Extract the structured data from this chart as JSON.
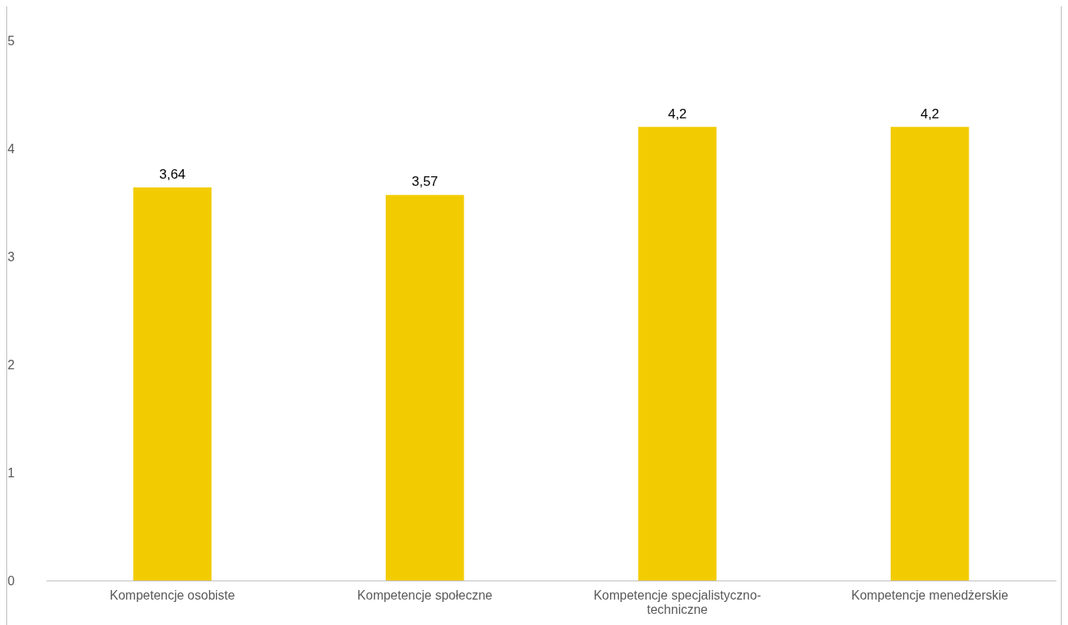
{
  "chart_data": {
    "type": "bar",
    "categories": [
      "Kompetencje osobiste",
      "Kompetencje społeczne",
      "Kompetencje specjalistyczno-techniczne",
      "Kompetencje menedżerskie"
    ],
    "values": [
      3.64,
      3.57,
      4.2,
      4.2
    ],
    "value_labels": [
      "3,64",
      "3,57",
      "4,2",
      "4,2"
    ],
    "color": "#f2cc00",
    "ylim": [
      0,
      5
    ],
    "yticks": [
      0,
      1,
      2,
      3,
      4,
      5
    ],
    "grid": false
  }
}
